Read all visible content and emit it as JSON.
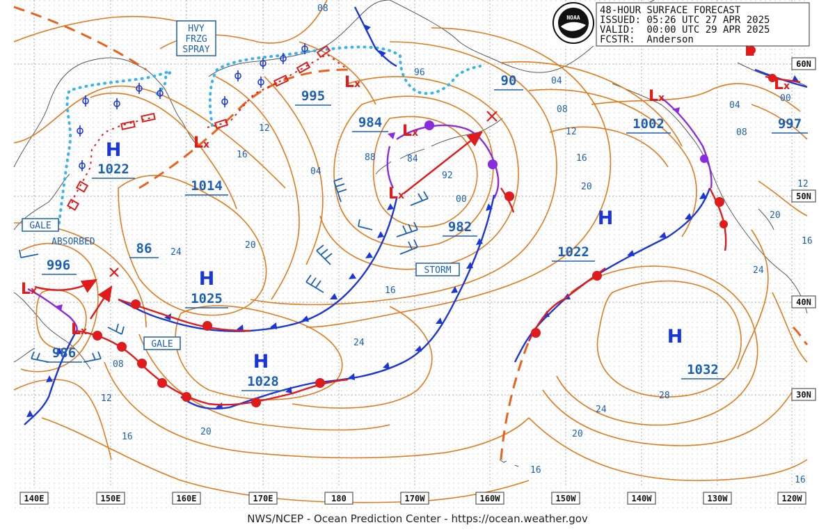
{
  "header": {
    "line1": "48-HOUR SURFACE FORECAST",
    "line2": "ISSUED: 05:26 UTC 27 APR 2025",
    "line3": "VALID:  00:00 UTC 29 APR 2025",
    "line4": "FCSTR:  Anderson",
    "logo_text": "NOAA"
  },
  "footer": "NWS/NCEP - Ocean Prediction Center - https://ocean.weather.gov",
  "longitude_labels": [
    "140E",
    "150E",
    "160E",
    "170E",
    "180",
    "170W",
    "160W",
    "150W",
    "140W",
    "130W",
    "120W"
  ],
  "latitude_labels": [
    "60N",
    "50N",
    "40N",
    "30N"
  ],
  "pressure_systems": [
    {
      "type": "H",
      "pressure": "1022"
    },
    {
      "type": "H",
      "pressure": "1025"
    },
    {
      "type": "H",
      "pressure": "1028"
    },
    {
      "type": "H",
      "pressure": "1022"
    },
    {
      "type": "H",
      "pressure": "1032"
    },
    {
      "type": "L",
      "pressure": "984"
    },
    {
      "type": "L",
      "pressure": "996"
    },
    {
      "type": "L",
      "pressure": "986"
    },
    {
      "type": "L",
      "pressure": "1002"
    },
    {
      "type": "L",
      "pressure": "997"
    },
    {
      "type": "L",
      "pressure": "995"
    },
    {
      "type": "L",
      "pressure": ""
    },
    {
      "type": "L",
      "pressure": ""
    }
  ],
  "pressure_labels": [
    "1014",
    "86",
    "90",
    "982"
  ],
  "isobar_labels": [
    "08",
    "96",
    "04",
    "08",
    "12",
    "16",
    "20",
    "12",
    "16",
    "04",
    "88",
    "84",
    "92",
    "00",
    "20",
    "24",
    "16",
    "24",
    "08",
    "12",
    "16",
    "20",
    "20",
    "24",
    "28",
    "16",
    "04",
    "08",
    "12",
    "20",
    "16",
    "00",
    "24",
    "16"
  ],
  "warnings": {
    "heavy_freezing_spray": [
      "HVY",
      "FRZG",
      "SPRAY"
    ],
    "gale_1": "GALE",
    "absorbed": "ABSORBED",
    "storm": "STORM",
    "gale_2": "GALE"
  },
  "colors": {
    "isobar": "#e07a1c",
    "cold_front": "#1a36d6",
    "warm_front": "#e01b1b",
    "occluded_front": "#8a2be2",
    "ice_edge": "#3ab4e8",
    "high": "#1a36d6",
    "low": "#e01b1b"
  },
  "legend": {
    "front_types": [
      "cold",
      "warm",
      "occluded",
      "stationary"
    ],
    "icons": [
      "high-pressure-icon",
      "low-pressure-icon",
      "wind-barb-icon",
      "ice-edge-icon",
      "freezing-spray-icon",
      "storm-track-arrow-icon"
    ]
  }
}
